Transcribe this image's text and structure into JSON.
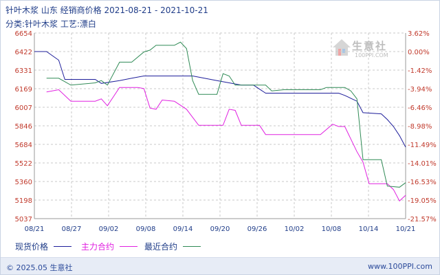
{
  "header": {
    "title": "针叶木浆 山东 经销商价格 2021-08-21 - 2021-10-21",
    "subtitle": "分类:针叶木浆 工艺:漂白"
  },
  "watermark": {
    "text": "生意社",
    "url": "100PPI.COM"
  },
  "legend": {
    "spot_label": "现货价格",
    "main_label": "主力合约",
    "recent_label": "最近合约"
  },
  "footer": {
    "left": "© 2025.05 生意社",
    "right": "www.100PPI.com"
  },
  "colors": {
    "spot": "#1d1d9a",
    "main": "#e020e0",
    "recent": "#2f8a55",
    "axis_text": "#c0392b",
    "grid": "#c8c8c8",
    "x_text": "#1f3c88"
  },
  "chart_data": {
    "type": "line",
    "title": "针叶木浆 山东 经销商价格 2021-08-21 - 2021-10-21",
    "x_ticks": [
      "08/21",
      "08/27",
      "09/02",
      "09/08",
      "09/14",
      "09/20",
      "09/26",
      "10/02",
      "10/08",
      "10/14",
      "10/21"
    ],
    "y_left_ticks": [
      "6654",
      "6422",
      "6331",
      "6169",
      "6007",
      "5846",
      "5684",
      "5522",
      "5360",
      "5198",
      "5037"
    ],
    "y_right_ticks": [
      "3.62%",
      "0.00%",
      "-1.42%",
      "-3.94%",
      "-6.46%",
      "-8.98%",
      "-11.49%",
      "-14.01%",
      "-16.53%",
      "-19.05%",
      "-21.57%"
    ],
    "y_left_range": [
      5037,
      6654
    ],
    "grid": true,
    "legend_position": "bottom",
    "series": [
      {
        "name": "现货价格",
        "color": "#1d1d9a",
        "points": [
          [
            "08/21",
            6422
          ],
          [
            "08/23",
            6422
          ],
          [
            "08/25",
            6380
          ],
          [
            "08/26",
            6250
          ],
          [
            "08/28",
            6250
          ],
          [
            "08/31",
            6250
          ],
          [
            "09/01",
            6215
          ],
          [
            "09/04",
            6240
          ],
          [
            "09/06",
            6260
          ],
          [
            "09/08",
            6280
          ],
          [
            "09/09",
            6280
          ],
          [
            "09/16",
            6280
          ],
          [
            "09/20",
            6240
          ],
          [
            "09/24",
            6200
          ],
          [
            "09/26",
            6200
          ],
          [
            "09/28",
            6130
          ],
          [
            "10/01",
            6130
          ],
          [
            "10/10",
            6130
          ],
          [
            "10/11",
            6110
          ],
          [
            "10/13",
            6060
          ],
          [
            "10/14",
            5960
          ],
          [
            "10/17",
            5950
          ],
          [
            "10/18",
            5900
          ],
          [
            "10/19",
            5840
          ],
          [
            "10/20",
            5760
          ],
          [
            "10/21",
            5660
          ]
        ]
      },
      {
        "name": "主力合约",
        "color": "#e020e0",
        "points": [
          [
            "08/23",
            6140
          ],
          [
            "08/25",
            6160
          ],
          [
            "08/27",
            6060
          ],
          [
            "08/31",
            6060
          ],
          [
            "09/01",
            6080
          ],
          [
            "09/02",
            6020
          ],
          [
            "09/03",
            6100
          ],
          [
            "09/04",
            6180
          ],
          [
            "09/07",
            6180
          ],
          [
            "09/08",
            6170
          ],
          [
            "09/09",
            6000
          ],
          [
            "09/10",
            5990
          ],
          [
            "09/11",
            6070
          ],
          [
            "09/13",
            6060
          ],
          [
            "09/15",
            5990
          ],
          [
            "09/17",
            5850
          ],
          [
            "09/21",
            5850
          ],
          [
            "09/22",
            5990
          ],
          [
            "09/23",
            5980
          ],
          [
            "09/24",
            5850
          ],
          [
            "09/27",
            5850
          ],
          [
            "09/28",
            5770
          ],
          [
            "10/07",
            5770
          ],
          [
            "10/09",
            5860
          ],
          [
            "10/10",
            5840
          ],
          [
            "10/11",
            5840
          ],
          [
            "10/13",
            5620
          ],
          [
            "10/14",
            5530
          ],
          [
            "10/15",
            5340
          ],
          [
            "10/18",
            5340
          ],
          [
            "10/19",
            5290
          ],
          [
            "10/20",
            5190
          ],
          [
            "10/21",
            5240
          ]
        ]
      },
      {
        "name": "最近合约",
        "color": "#2f8a55",
        "points": [
          [
            "08/23",
            6260
          ],
          [
            "08/25",
            6260
          ],
          [
            "08/27",
            6200
          ],
          [
            "08/31",
            6220
          ],
          [
            "09/01",
            6240
          ],
          [
            "09/02",
            6200
          ],
          [
            "09/04",
            6370
          ],
          [
            "09/06",
            6370
          ],
          [
            "09/08",
            6420
          ],
          [
            "09/09",
            6440
          ],
          [
            "09/10",
            6500
          ],
          [
            "09/13",
            6500
          ],
          [
            "09/14",
            6540
          ],
          [
            "09/15",
            6460
          ],
          [
            "09/16",
            6240
          ],
          [
            "09/17",
            6120
          ],
          [
            "09/20",
            6120
          ],
          [
            "09/21",
            6300
          ],
          [
            "09/22",
            6280
          ],
          [
            "09/23",
            6200
          ],
          [
            "09/28",
            6200
          ],
          [
            "09/29",
            6150
          ],
          [
            "10/01",
            6160
          ],
          [
            "10/07",
            6160
          ],
          [
            "10/08",
            6180
          ],
          [
            "10/11",
            6180
          ],
          [
            "10/12",
            6150
          ],
          [
            "10/13",
            6080
          ],
          [
            "10/14",
            5550
          ],
          [
            "10/17",
            5550
          ],
          [
            "10/18",
            5320
          ],
          [
            "10/20",
            5310
          ],
          [
            "10/21",
            5350
          ]
        ]
      }
    ]
  }
}
